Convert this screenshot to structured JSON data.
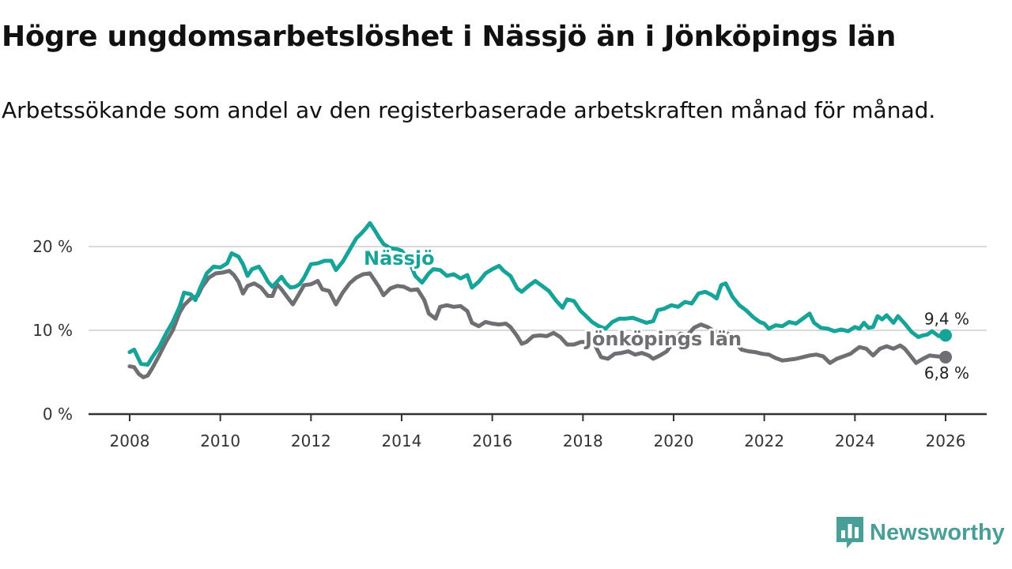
{
  "title": "Högre ungdomsarbetslöshet i Nässjö än i Jönköpings län",
  "subtitle": "Arbetssökande som andel av den registerbaserade arbetskraften månad för månad.",
  "brand": {
    "name": "Newsworthy",
    "icon": "bar-chart-speech-bubble-icon",
    "color": "#4a9e98"
  },
  "chart_data": {
    "type": "line",
    "xlim": [
      2008,
      2026
    ],
    "ylim": [
      0,
      20
    ],
    "x_ticks": [
      {
        "value": 2008,
        "label": "2008"
      },
      {
        "value": 2010,
        "label": "2010"
      },
      {
        "value": 2012,
        "label": "2012"
      },
      {
        "value": 2014,
        "label": "2014"
      },
      {
        "value": 2016,
        "label": "2016"
      },
      {
        "value": 2018,
        "label": "2018"
      },
      {
        "value": 2020,
        "label": "2020"
      },
      {
        "value": 2022,
        "label": "2022"
      },
      {
        "value": 2024,
        "label": "2024"
      },
      {
        "value": 2026,
        "label": "2026"
      }
    ],
    "y_ticks": [
      {
        "value": 0,
        "label": "0 %"
      },
      {
        "value": 10,
        "label": "10 %"
      },
      {
        "value": 20,
        "label": "20 %"
      }
    ],
    "grid": "horizontal",
    "series": [
      {
        "name": "Nässjö",
        "color": "#17a398",
        "end_label": "9,4 %",
        "points": [
          [
            2008.0,
            7.4
          ],
          [
            2008.1,
            7.7
          ],
          [
            2008.25,
            6.0
          ],
          [
            2008.4,
            5.9
          ],
          [
            2008.5,
            6.8
          ],
          [
            2008.65,
            8.0
          ],
          [
            2008.8,
            9.6
          ],
          [
            2008.95,
            11.0
          ],
          [
            2009.1,
            12.8
          ],
          [
            2009.2,
            14.5
          ],
          [
            2009.35,
            14.3
          ],
          [
            2009.45,
            13.6
          ],
          [
            2009.55,
            15.0
          ],
          [
            2009.7,
            16.8
          ],
          [
            2009.85,
            17.6
          ],
          [
            2010.0,
            17.5
          ],
          [
            2010.15,
            18.0
          ],
          [
            2010.25,
            19.2
          ],
          [
            2010.4,
            18.8
          ],
          [
            2010.5,
            17.9
          ],
          [
            2010.6,
            16.5
          ],
          [
            2010.7,
            17.3
          ],
          [
            2010.85,
            17.6
          ],
          [
            2010.95,
            16.8
          ],
          [
            2011.05,
            15.8
          ],
          [
            2011.15,
            15.2
          ],
          [
            2011.25,
            15.8
          ],
          [
            2011.35,
            16.4
          ],
          [
            2011.45,
            15.6
          ],
          [
            2011.55,
            15.1
          ],
          [
            2011.65,
            15.2
          ],
          [
            2011.75,
            15.5
          ],
          [
            2011.85,
            16.3
          ],
          [
            2012.0,
            17.9
          ],
          [
            2012.15,
            18.0
          ],
          [
            2012.3,
            18.3
          ],
          [
            2012.45,
            18.3
          ],
          [
            2012.55,
            17.2
          ],
          [
            2012.7,
            18.2
          ],
          [
            2012.85,
            19.6
          ],
          [
            2013.0,
            21.0
          ],
          [
            2013.1,
            21.5
          ],
          [
            2013.2,
            22.1
          ],
          [
            2013.3,
            22.8
          ],
          [
            2013.4,
            22.0
          ],
          [
            2013.5,
            21.1
          ],
          [
            2013.6,
            20.3
          ],
          [
            2013.75,
            19.8
          ],
          [
            2013.9,
            19.7
          ],
          [
            2014.0,
            19.5
          ],
          [
            2014.15,
            18.5
          ],
          [
            2014.3,
            16.5
          ],
          [
            2014.45,
            15.7
          ],
          [
            2014.6,
            16.8
          ],
          [
            2014.7,
            17.3
          ],
          [
            2014.85,
            17.2
          ],
          [
            2015.0,
            16.5
          ],
          [
            2015.15,
            16.7
          ],
          [
            2015.3,
            16.2
          ],
          [
            2015.45,
            16.6
          ],
          [
            2015.55,
            15.1
          ],
          [
            2015.7,
            15.8
          ],
          [
            2015.85,
            16.8
          ],
          [
            2016.0,
            17.3
          ],
          [
            2016.15,
            17.7
          ],
          [
            2016.25,
            17.1
          ],
          [
            2016.4,
            16.5
          ],
          [
            2016.55,
            15.0
          ],
          [
            2016.65,
            14.6
          ],
          [
            2016.8,
            15.3
          ],
          [
            2016.95,
            15.9
          ],
          [
            2017.1,
            15.3
          ],
          [
            2017.25,
            14.7
          ],
          [
            2017.4,
            13.6
          ],
          [
            2017.55,
            12.7
          ],
          [
            2017.65,
            13.7
          ],
          [
            2017.8,
            13.5
          ],
          [
            2017.95,
            12.3
          ],
          [
            2018.05,
            11.8
          ],
          [
            2018.2,
            11.0
          ],
          [
            2018.35,
            10.5
          ],
          [
            2018.5,
            10.2
          ],
          [
            2018.65,
            11.0
          ],
          [
            2018.8,
            11.4
          ],
          [
            2018.95,
            11.4
          ],
          [
            2019.1,
            11.5
          ],
          [
            2019.25,
            11.2
          ],
          [
            2019.4,
            10.9
          ],
          [
            2019.55,
            11.1
          ],
          [
            2019.65,
            12.4
          ],
          [
            2019.8,
            12.6
          ],
          [
            2019.95,
            13.0
          ],
          [
            2020.1,
            12.8
          ],
          [
            2020.25,
            13.4
          ],
          [
            2020.4,
            13.2
          ],
          [
            2020.55,
            14.4
          ],
          [
            2020.7,
            14.6
          ],
          [
            2020.85,
            14.2
          ],
          [
            2020.95,
            13.8
          ],
          [
            2021.05,
            15.4
          ],
          [
            2021.15,
            15.6
          ],
          [
            2021.3,
            14.0
          ],
          [
            2021.45,
            13.0
          ],
          [
            2021.6,
            12.4
          ],
          [
            2021.75,
            11.6
          ],
          [
            2021.9,
            11.0
          ],
          [
            2022.0,
            10.8
          ],
          [
            2022.1,
            10.2
          ],
          [
            2022.25,
            10.6
          ],
          [
            2022.4,
            10.5
          ],
          [
            2022.55,
            11.0
          ],
          [
            2022.7,
            10.8
          ],
          [
            2022.85,
            11.4
          ],
          [
            2023.0,
            12.0
          ],
          [
            2023.1,
            10.9
          ],
          [
            2023.25,
            10.3
          ],
          [
            2023.4,
            10.2
          ],
          [
            2023.55,
            9.9
          ],
          [
            2023.7,
            10.1
          ],
          [
            2023.85,
            9.9
          ],
          [
            2024.0,
            10.4
          ],
          [
            2024.1,
            10.2
          ],
          [
            2024.2,
            10.9
          ],
          [
            2024.3,
            10.3
          ],
          [
            2024.4,
            10.4
          ],
          [
            2024.5,
            11.7
          ],
          [
            2024.6,
            11.3
          ],
          [
            2024.7,
            11.8
          ],
          [
            2024.85,
            10.9
          ],
          [
            2024.95,
            11.7
          ],
          [
            2025.1,
            10.8
          ],
          [
            2025.25,
            9.8
          ],
          [
            2025.4,
            9.2
          ],
          [
            2025.5,
            9.4
          ],
          [
            2025.6,
            9.5
          ],
          [
            2025.7,
            9.9
          ],
          [
            2025.85,
            9.3
          ],
          [
            2026.0,
            9.4
          ]
        ]
      },
      {
        "name": "Jönköpings län",
        "color": "#6e6e73",
        "end_label": "6,8 %",
        "points": [
          [
            2008.0,
            5.7
          ],
          [
            2008.1,
            5.6
          ],
          [
            2008.2,
            4.8
          ],
          [
            2008.3,
            4.4
          ],
          [
            2008.4,
            4.6
          ],
          [
            2008.5,
            5.5
          ],
          [
            2008.65,
            7.0
          ],
          [
            2008.8,
            8.6
          ],
          [
            2008.95,
            10.0
          ],
          [
            2009.1,
            12.1
          ],
          [
            2009.2,
            13.0
          ],
          [
            2009.35,
            13.8
          ],
          [
            2009.5,
            14.1
          ],
          [
            2009.6,
            15.2
          ],
          [
            2009.75,
            16.3
          ],
          [
            2009.9,
            16.8
          ],
          [
            2010.05,
            16.9
          ],
          [
            2010.2,
            17.1
          ],
          [
            2010.3,
            16.6
          ],
          [
            2010.4,
            15.8
          ],
          [
            2010.5,
            14.4
          ],
          [
            2010.6,
            15.3
          ],
          [
            2010.75,
            15.6
          ],
          [
            2010.9,
            15.1
          ],
          [
            2011.05,
            14.1
          ],
          [
            2011.15,
            14.1
          ],
          [
            2011.25,
            15.5
          ],
          [
            2011.35,
            14.9
          ],
          [
            2011.5,
            13.8
          ],
          [
            2011.6,
            13.1
          ],
          [
            2011.7,
            14.0
          ],
          [
            2011.85,
            15.4
          ],
          [
            2012.0,
            15.5
          ],
          [
            2012.15,
            15.9
          ],
          [
            2012.25,
            14.9
          ],
          [
            2012.4,
            14.7
          ],
          [
            2012.55,
            13.1
          ],
          [
            2012.7,
            14.5
          ],
          [
            2012.85,
            15.6
          ],
          [
            2013.0,
            16.3
          ],
          [
            2013.15,
            16.7
          ],
          [
            2013.3,
            16.8
          ],
          [
            2013.4,
            16.0
          ],
          [
            2013.5,
            15.2
          ],
          [
            2013.6,
            14.2
          ],
          [
            2013.75,
            15.0
          ],
          [
            2013.9,
            15.3
          ],
          [
            2014.05,
            15.2
          ],
          [
            2014.2,
            14.8
          ],
          [
            2014.35,
            14.9
          ],
          [
            2014.5,
            13.6
          ],
          [
            2014.6,
            12.0
          ],
          [
            2014.75,
            11.4
          ],
          [
            2014.85,
            12.8
          ],
          [
            2015.0,
            13.0
          ],
          [
            2015.15,
            12.8
          ],
          [
            2015.3,
            12.9
          ],
          [
            2015.45,
            12.3
          ],
          [
            2015.55,
            10.9
          ],
          [
            2015.7,
            10.5
          ],
          [
            2015.85,
            11.0
          ],
          [
            2016.0,
            10.8
          ],
          [
            2016.15,
            10.7
          ],
          [
            2016.3,
            10.8
          ],
          [
            2016.4,
            10.4
          ],
          [
            2016.55,
            9.3
          ],
          [
            2016.65,
            8.4
          ],
          [
            2016.75,
            8.6
          ],
          [
            2016.9,
            9.3
          ],
          [
            2017.05,
            9.4
          ],
          [
            2017.2,
            9.3
          ],
          [
            2017.35,
            9.7
          ],
          [
            2017.5,
            9.2
          ],
          [
            2017.65,
            8.3
          ],
          [
            2017.8,
            8.3
          ],
          [
            2017.95,
            8.6
          ],
          [
            2018.1,
            8.6
          ],
          [
            2018.25,
            8.4
          ],
          [
            2018.4,
            6.8
          ],
          [
            2018.55,
            6.6
          ],
          [
            2018.7,
            7.2
          ],
          [
            2018.85,
            7.3
          ],
          [
            2019.0,
            7.5
          ],
          [
            2019.15,
            7.1
          ],
          [
            2019.3,
            7.3
          ],
          [
            2019.45,
            7.0
          ],
          [
            2019.55,
            6.6
          ],
          [
            2019.7,
            7.0
          ],
          [
            2019.85,
            7.5
          ],
          [
            2020.0,
            8.6
          ],
          [
            2020.15,
            9.6
          ],
          [
            2020.3,
            9.4
          ],
          [
            2020.45,
            10.3
          ],
          [
            2020.6,
            10.7
          ],
          [
            2020.75,
            10.4
          ],
          [
            2020.9,
            9.9
          ],
          [
            2021.05,
            9.8
          ],
          [
            2021.2,
            9.6
          ],
          [
            2021.35,
            8.6
          ],
          [
            2021.5,
            7.7
          ],
          [
            2021.65,
            7.5
          ],
          [
            2021.8,
            7.4
          ],
          [
            2021.95,
            7.2
          ],
          [
            2022.1,
            7.1
          ],
          [
            2022.25,
            6.7
          ],
          [
            2022.4,
            6.4
          ],
          [
            2022.55,
            6.5
          ],
          [
            2022.7,
            6.6
          ],
          [
            2022.85,
            6.8
          ],
          [
            2023.0,
            7.0
          ],
          [
            2023.15,
            7.1
          ],
          [
            2023.3,
            6.9
          ],
          [
            2023.45,
            6.1
          ],
          [
            2023.6,
            6.6
          ],
          [
            2023.75,
            6.9
          ],
          [
            2023.9,
            7.2
          ],
          [
            2024.0,
            7.6
          ],
          [
            2024.1,
            8.0
          ],
          [
            2024.25,
            7.8
          ],
          [
            2024.4,
            7.0
          ],
          [
            2024.55,
            7.8
          ],
          [
            2024.7,
            8.1
          ],
          [
            2024.85,
            7.8
          ],
          [
            2025.0,
            8.2
          ],
          [
            2025.1,
            7.8
          ],
          [
            2025.25,
            6.8
          ],
          [
            2025.35,
            6.1
          ],
          [
            2025.5,
            6.6
          ],
          [
            2025.65,
            7.0
          ],
          [
            2025.8,
            6.9
          ],
          [
            2026.0,
            6.8
          ]
        ]
      }
    ]
  }
}
